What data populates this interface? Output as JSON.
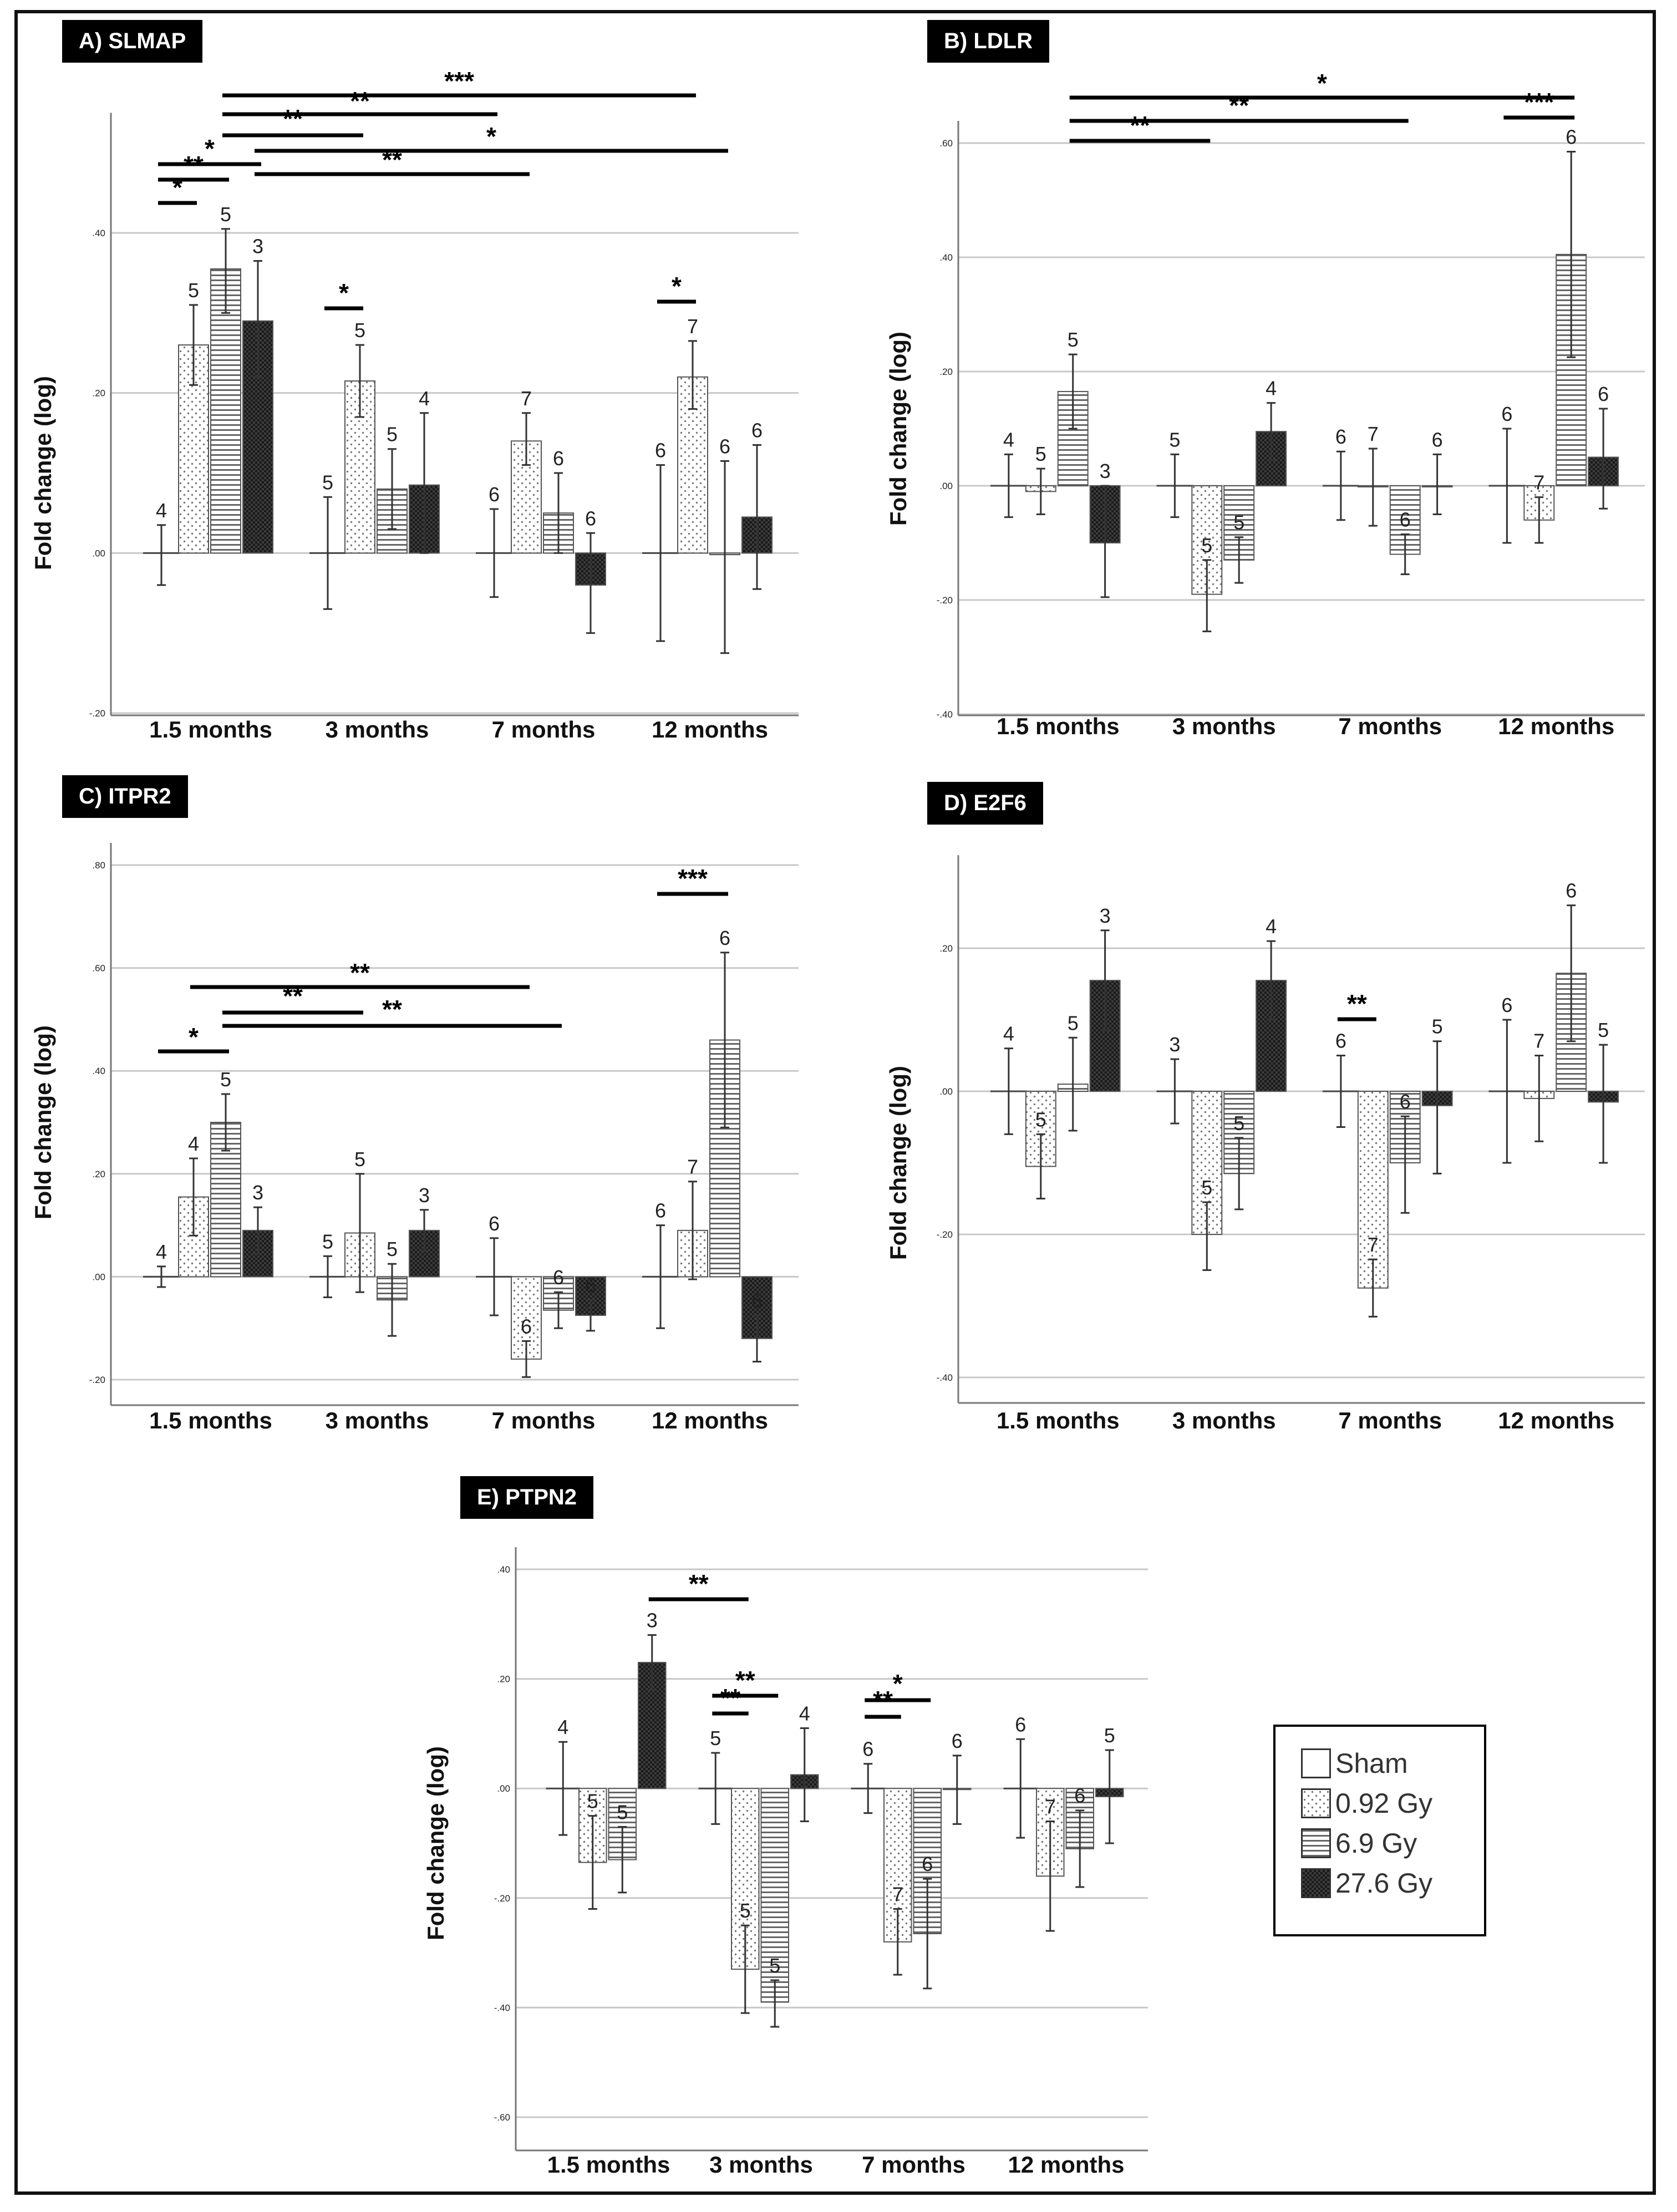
{
  "colors": {
    "bar_stroke": "#555555",
    "grid": "#c8c8c8",
    "text": "#222222",
    "dark": "#111111"
  },
  "legend": {
    "items": [
      {
        "label": "Sham",
        "pattern": "sham-pattern"
      },
      {
        "label": "0.92 Gy",
        "pattern": "dots-pattern"
      },
      {
        "label": "6.9 Gy",
        "pattern": "hlines-pattern"
      },
      {
        "label": "27.6 Gy",
        "pattern": "checker-pattern"
      }
    ]
  },
  "chart_data": [
    {
      "panel": "A",
      "title": "A) SLMAP",
      "type": "bar",
      "ylabel": "Fold change (log)",
      "yticks": [
        ".00",
        ".20",
        ".40",
        "-.20"
      ],
      "ylim": [
        -0.2,
        0.55
      ],
      "categories": [
        "1.5 months",
        "3 months",
        "7 months",
        "12 months"
      ],
      "series": [
        {
          "name": "Sham",
          "values": [
            0,
            0,
            0,
            0
          ],
          "err_low": [
            -0.04,
            -0.07,
            -0.055,
            -0.11
          ],
          "err_high": [
            0.035,
            0.07,
            0.055,
            0.11
          ],
          "n": [
            "4",
            "5",
            "6",
            "6"
          ]
        },
        {
          "name": "0.92 Gy",
          "values": [
            0.26,
            0.215,
            0.14,
            0.22
          ],
          "err_low": [
            0.21,
            0.17,
            0.11,
            0.18
          ],
          "err_high": [
            0.31,
            0.26,
            0.175,
            0.265
          ],
          "n": [
            "5",
            "5",
            "7",
            "7"
          ]
        },
        {
          "name": "6.9 Gy",
          "values": [
            0.355,
            0.08,
            0.05,
            -0.002
          ],
          "err_low": [
            0.3,
            0.03,
            0.0,
            -0.125
          ],
          "err_high": [
            0.405,
            0.13,
            0.1,
            0.115
          ],
          "n": [
            "5",
            "5",
            "6",
            "6"
          ]
        },
        {
          "name": "27.6 Gy",
          "values": [
            0.29,
            0.085,
            -0.04,
            0.045
          ],
          "err_low": [
            0.22,
            0.0,
            -0.1,
            -0.045
          ],
          "err_high": [
            0.365,
            0.175,
            0.025,
            0.135
          ],
          "n": [
            "3",
            "4",
            "6",
            "6"
          ]
        }
      ],
      "significance": [
        {
          "stars": "*",
          "from": [
            0,
            0
          ],
          "to": [
            0,
            1
          ]
        },
        {
          "stars": "**",
          "from": [
            0,
            0
          ],
          "to": [
            0,
            2
          ]
        },
        {
          "stars": "*",
          "from": [
            0,
            0
          ],
          "to": [
            0,
            3
          ]
        },
        {
          "stars": "**",
          "from": [
            0,
            3
          ],
          "to": [
            2,
            1
          ]
        },
        {
          "stars": "*",
          "from": [
            0,
            3
          ],
          "to": [
            3,
            2
          ]
        },
        {
          "stars": "**",
          "from": [
            0,
            2
          ],
          "to": [
            1,
            1
          ]
        },
        {
          "stars": "**",
          "from": [
            0,
            2
          ],
          "to": [
            2,
            0
          ]
        },
        {
          "stars": "***",
          "from": [
            0,
            2
          ],
          "to": [
            3,
            1
          ]
        },
        {
          "stars": "*",
          "from": [
            1,
            0
          ],
          "to": [
            1,
            1
          ]
        },
        {
          "stars": "*",
          "from": [
            3,
            0
          ],
          "to": [
            3,
            1
          ]
        }
      ]
    },
    {
      "panel": "B",
      "title": "B) LDLR",
      "type": "bar",
      "ylabel": "Fold change (log)",
      "yticks": [
        ".60",
        ".40",
        ".20",
        ".00",
        "-.20",
        "-.40"
      ],
      "ylim": [
        -0.4,
        0.6
      ],
      "categories": [
        "1.5 months",
        "3 months",
        "7 months",
        "12 months"
      ],
      "series": [
        {
          "name": "Sham",
          "values": [
            0,
            0,
            0,
            0
          ],
          "err_low": [
            -0.055,
            -0.055,
            -0.06,
            -0.1
          ],
          "err_high": [
            0.055,
            0.055,
            0.06,
            0.1
          ],
          "n": [
            "4",
            "5",
            "6",
            "6"
          ]
        },
        {
          "name": "0.92 Gy",
          "values": [
            -0.01,
            -0.19,
            0.0,
            -0.06
          ],
          "err_low": [
            -0.05,
            -0.255,
            -0.07,
            -0.1
          ],
          "err_high": [
            0.03,
            -0.13,
            0.065,
            -0.02
          ],
          "n": [
            "5",
            "5",
            "7",
            "7"
          ]
        },
        {
          "name": "6.9 Gy",
          "values": [
            0.165,
            -0.13,
            -0.12,
            0.405
          ],
          "err_low": [
            0.1,
            -0.17,
            -0.155,
            0.225
          ],
          "err_high": [
            0.23,
            -0.09,
            -0.085,
            0.585
          ],
          "n": [
            "5",
            "5",
            "6",
            "6"
          ]
        },
        {
          "name": "27.6 Gy",
          "values": [
            -0.1,
            0.095,
            0.0,
            0.05
          ],
          "err_low": [
            -0.195,
            0.045,
            -0.05,
            -0.04
          ],
          "err_high": [
            0.0,
            0.145,
            0.055,
            0.135
          ],
          "n": [
            "3",
            "4",
            "6",
            "6"
          ]
        }
      ],
      "significance": [
        {
          "stars": "**",
          "from": [
            0,
            2
          ],
          "to": [
            1,
            1
          ]
        },
        {
          "stars": "**",
          "from": [
            0,
            2
          ],
          "to": [
            2,
            2
          ]
        },
        {
          "stars": "*",
          "from": [
            0,
            2
          ],
          "to": [
            3,
            2
          ]
        },
        {
          "stars": "***",
          "from": [
            3,
            0
          ],
          "to": [
            3,
            2
          ]
        }
      ]
    },
    {
      "panel": "C",
      "title": "C) ITPR2",
      "type": "bar",
      "ylabel": "Fold change (log)",
      "yticks": [
        ".80",
        ".60",
        ".40",
        ".20",
        ".00",
        "-.20"
      ],
      "ylim": [
        -0.2,
        0.8
      ],
      "categories": [
        "1.5 months",
        "3 months",
        "7 months",
        "12 months"
      ],
      "series": [
        {
          "name": "Sham",
          "values": [
            0,
            0,
            0,
            0
          ],
          "err_low": [
            -0.02,
            -0.04,
            -0.075,
            -0.1
          ],
          "err_high": [
            0.02,
            0.04,
            0.075,
            0.1
          ],
          "n": [
            "4",
            "5",
            "6",
            "6"
          ]
        },
        {
          "name": "0.92 Gy",
          "values": [
            0.155,
            0.085,
            -0.16,
            0.09
          ],
          "err_low": [
            0.08,
            -0.03,
            -0.195,
            -0.005
          ],
          "err_high": [
            0.23,
            0.2,
            -0.125,
            0.185
          ],
          "n": [
            "4",
            "5",
            "6",
            "7"
          ]
        },
        {
          "name": "6.9 Gy",
          "values": [
            0.3,
            -0.045,
            -0.065,
            0.46
          ],
          "err_low": [
            0.245,
            -0.115,
            -0.1,
            0.29
          ],
          "err_high": [
            0.355,
            0.025,
            -0.03,
            0.63
          ],
          "n": [
            "5",
            "5",
            "6",
            "6"
          ]
        },
        {
          "name": "27.6 Gy",
          "values": [
            0.09,
            0.09,
            -0.075,
            -0.12
          ],
          "err_low": [
            0.045,
            0.05,
            -0.105,
            -0.165
          ],
          "err_high": [
            0.135,
            0.13,
            -0.045,
            -0.075
          ],
          "n": [
            "3",
            "3",
            "6",
            "6"
          ]
        }
      ],
      "significance": [
        {
          "stars": "*",
          "from": [
            0,
            0
          ],
          "to": [
            0,
            2
          ]
        },
        {
          "stars": "**",
          "from": [
            0,
            1
          ],
          "to": [
            2,
            1
          ]
        },
        {
          "stars": "**",
          "from": [
            0,
            2
          ],
          "to": [
            1,
            1
          ]
        },
        {
          "stars": "**",
          "from": [
            0,
            2
          ],
          "to": [
            2,
            2
          ]
        },
        {
          "stars": "***",
          "from": [
            3,
            0
          ],
          "to": [
            3,
            2
          ]
        }
      ]
    },
    {
      "panel": "D",
      "title": "D) E2F6",
      "type": "bar",
      "ylabel": "Fold change (log)",
      "yticks": [
        ".20",
        ".00",
        "-.20",
        "-.40"
      ],
      "ylim": [
        -0.42,
        0.33
      ],
      "categories": [
        "1.5 months",
        "3 months",
        "7 months",
        "12 months"
      ],
      "series": [
        {
          "name": "Sham",
          "values": [
            0,
            0,
            0,
            0
          ],
          "err_low": [
            -0.06,
            -0.045,
            -0.05,
            -0.1
          ],
          "err_high": [
            0.06,
            0.045,
            0.05,
            0.1
          ],
          "n": [
            "4",
            "3",
            "6",
            "6"
          ]
        },
        {
          "name": "0.92 Gy",
          "values": [
            -0.105,
            -0.2,
            -0.275,
            -0.01
          ],
          "err_low": [
            -0.15,
            -0.25,
            -0.315,
            -0.07
          ],
          "err_high": [
            -0.06,
            -0.155,
            -0.235,
            0.05
          ],
          "n": [
            "5",
            "5",
            "7",
            "7"
          ]
        },
        {
          "name": "6.9 Gy",
          "values": [
            0.01,
            -0.115,
            -0.1,
            0.165
          ],
          "err_low": [
            -0.055,
            -0.165,
            -0.17,
            0.07
          ],
          "err_high": [
            0.075,
            -0.065,
            -0.035,
            0.26
          ],
          "n": [
            "5",
            "5",
            "6",
            "6"
          ]
        },
        {
          "name": "27.6 Gy",
          "values": [
            0.155,
            0.155,
            -0.02,
            -0.015
          ],
          "err_low": [
            0.085,
            0.1,
            -0.115,
            -0.1
          ],
          "err_high": [
            0.225,
            0.21,
            0.07,
            0.065
          ],
          "n": [
            "3",
            "4",
            "5",
            "5"
          ]
        }
      ],
      "significance": [
        {
          "stars": "**",
          "from": [
            2,
            0
          ],
          "to": [
            2,
            1
          ]
        }
      ]
    },
    {
      "panel": "E",
      "title": "E) PTPN2",
      "type": "bar",
      "ylabel": "Fold change (log)",
      "yticks": [
        ".40",
        ".20",
        ".00",
        "-.20",
        "-.40",
        "-.60"
      ],
      "ylim": [
        -0.6,
        0.4
      ],
      "categories": [
        "1.5 months",
        "3 months",
        "7 months",
        "12 months"
      ],
      "series": [
        {
          "name": "Sham",
          "values": [
            0,
            0,
            0,
            0
          ],
          "err_low": [
            -0.085,
            -0.065,
            -0.045,
            -0.09
          ],
          "err_high": [
            0.085,
            0.065,
            0.045,
            0.09
          ],
          "n": [
            "4",
            "5",
            "6",
            "6"
          ]
        },
        {
          "name": "0.92 Gy",
          "values": [
            -0.135,
            -0.33,
            -0.28,
            -0.16
          ],
          "err_low": [
            -0.22,
            -0.41,
            -0.34,
            -0.26
          ],
          "err_high": [
            -0.05,
            -0.25,
            -0.22,
            -0.06
          ],
          "n": [
            "5",
            "5",
            "7",
            "7"
          ]
        },
        {
          "name": "6.9 Gy",
          "values": [
            -0.13,
            -0.39,
            -0.265,
            -0.11
          ],
          "err_low": [
            -0.19,
            -0.435,
            -0.365,
            -0.18
          ],
          "err_high": [
            -0.07,
            -0.35,
            -0.165,
            -0.04
          ],
          "n": [
            "5",
            "5",
            "6",
            "6"
          ]
        },
        {
          "name": "27.6 Gy",
          "values": [
            0.23,
            0.025,
            -0.002,
            -0.015
          ],
          "err_low": [
            0.18,
            -0.06,
            -0.065,
            -0.1
          ],
          "err_high": [
            0.28,
            0.11,
            0.06,
            0.07
          ],
          "n": [
            "3",
            "4",
            "6",
            "5"
          ]
        }
      ],
      "significance": [
        {
          "stars": "**",
          "from": [
            0,
            3
          ],
          "to": [
            1,
            1
          ]
        },
        {
          "stars": "**",
          "from": [
            1,
            0
          ],
          "to": [
            1,
            1
          ]
        },
        {
          "stars": "**",
          "from": [
            1,
            0
          ],
          "to": [
            1,
            2
          ]
        },
        {
          "stars": "**",
          "from": [
            2,
            0
          ],
          "to": [
            2,
            1
          ]
        },
        {
          "stars": "*",
          "from": [
            2,
            0
          ],
          "to": [
            2,
            2
          ]
        }
      ]
    }
  ]
}
